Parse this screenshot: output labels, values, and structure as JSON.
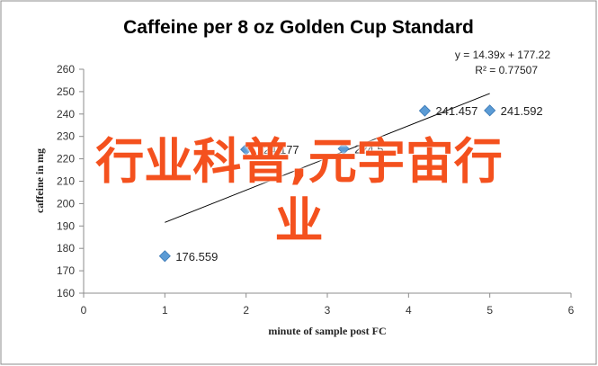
{
  "chart_data": {
    "type": "scatter",
    "title": "Caffeine per 8 oz Golden Cup Standard",
    "xlabel": "minute of sample post FC",
    "ylabel": "caffeine in mg",
    "xlim": [
      0,
      6
    ],
    "ylim": [
      160,
      260
    ],
    "x_ticks": [
      "0",
      "1",
      "2",
      "3",
      "4",
      "5",
      "6"
    ],
    "y_ticks": [
      "160",
      "170",
      "180",
      "190",
      "200",
      "210",
      "220",
      "230",
      "240",
      "250",
      "260"
    ],
    "grid": false,
    "series": [
      {
        "marker": "diamond",
        "color": "#5b9bd5",
        "points": [
          {
            "x": 1,
            "y": 176.559,
            "label": "176.559"
          },
          {
            "x": 2,
            "y": 224.177,
            "label": "224.177"
          },
          {
            "x": 3.2,
            "y": 224.5,
            "label": "224.5"
          },
          {
            "x": 4.2,
            "y": 241.457,
            "label": "241.457"
          },
          {
            "x": 5,
            "y": 241.592,
            "label": "241.592"
          }
        ]
      }
    ],
    "trendline": {
      "slope": 14.39,
      "intercept": 177.22,
      "x_range": [
        1,
        5
      ],
      "equation": "y = 14.39x + 177.22",
      "r_squared": "R² = 0.77507"
    }
  },
  "overlay": {
    "line1": "行业科普,元宇宙行",
    "line2": "业",
    "color": "#f4511e"
  }
}
